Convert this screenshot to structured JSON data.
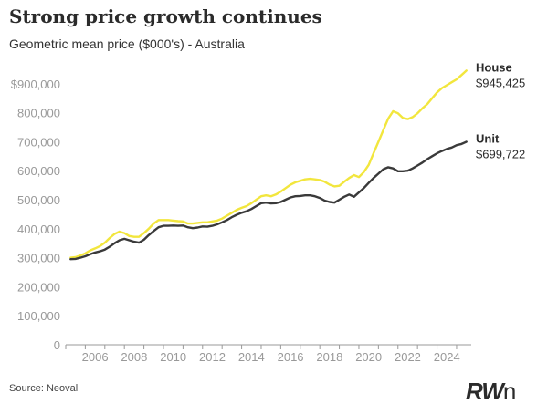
{
  "title": "Strong price growth continues",
  "subtitle": "Geometric mean price ($000's) - Australia",
  "source": "Source: Neoval",
  "logo": {
    "bold": "RW",
    "rest": "n"
  },
  "colors": {
    "house": "#f2e63d",
    "unit": "#3a3a3a",
    "axis": "#999999",
    "tick_text": "#999999"
  },
  "chart_data": {
    "type": "line",
    "title": "Strong price growth continues",
    "subtitle": "Geometric mean price ($000's) - Australia",
    "xlim": [
      2005.0,
      2025.75
    ],
    "ylim": [
      0,
      1000000
    ],
    "grid": false,
    "xticks": [
      2006,
      2008,
      2010,
      2012,
      2014,
      2016,
      2018,
      2020,
      2022,
      2024
    ],
    "xtick_labels": [
      "2006",
      "2008",
      "2010",
      "2012",
      "2014",
      "2016",
      "2018",
      "2020",
      "2022",
      "2024"
    ],
    "yticks": [
      0,
      100000,
      200000,
      300000,
      400000,
      500000,
      600000,
      700000,
      800000,
      900000
    ],
    "ytick_labels": [
      "0",
      "100,000",
      "200,000",
      "300,000",
      "400,000",
      "500,000",
      "600,000",
      "700,000",
      "800,000",
      "$900,000"
    ],
    "series": [
      {
        "name": "House",
        "end_label": "$945,425",
        "color": "#f2e63d",
        "x": [
          2005.25,
          2005.5,
          2005.75,
          2006.0,
          2006.25,
          2006.5,
          2006.75,
          2007.0,
          2007.25,
          2007.5,
          2007.75,
          2008.0,
          2008.25,
          2008.5,
          2008.75,
          2009.0,
          2009.25,
          2009.5,
          2009.75,
          2010.0,
          2010.25,
          2010.5,
          2010.75,
          2011.0,
          2011.25,
          2011.5,
          2011.75,
          2012.0,
          2012.25,
          2012.5,
          2012.75,
          2013.0,
          2013.25,
          2013.5,
          2013.75,
          2014.0,
          2014.25,
          2014.5,
          2014.75,
          2015.0,
          2015.25,
          2015.5,
          2015.75,
          2016.0,
          2016.25,
          2016.5,
          2016.75,
          2017.0,
          2017.25,
          2017.5,
          2017.75,
          2018.0,
          2018.25,
          2018.5,
          2018.75,
          2019.0,
          2019.25,
          2019.5,
          2019.75,
          2020.0,
          2020.25,
          2020.5,
          2020.75,
          2021.0,
          2021.25,
          2021.5,
          2021.75,
          2022.0,
          2022.25,
          2022.5,
          2022.75,
          2023.0,
          2023.25,
          2023.5,
          2023.75,
          2024.0,
          2024.25,
          2024.5,
          2024.75,
          2025.0,
          2025.25,
          2025.5
        ],
        "values": [
          300000,
          302000,
          308000,
          315000,
          325000,
          332000,
          340000,
          352000,
          368000,
          382000,
          390000,
          385000,
          375000,
          372000,
          372000,
          385000,
          400000,
          418000,
          430000,
          430000,
          430000,
          428000,
          426000,
          425000,
          418000,
          418000,
          420000,
          422000,
          422000,
          425000,
          428000,
          435000,
          445000,
          455000,
          465000,
          472000,
          478000,
          488000,
          500000,
          512000,
          515000,
          512000,
          518000,
          528000,
          540000,
          552000,
          560000,
          565000,
          570000,
          572000,
          570000,
          568000,
          562000,
          552000,
          546000,
          548000,
          562000,
          575000,
          585000,
          578000,
          595000,
          620000,
          660000,
          700000,
          740000,
          780000,
          805000,
          798000,
          782000,
          778000,
          785000,
          798000,
          815000,
          830000,
          850000,
          870000,
          885000,
          895000,
          905000,
          915000,
          930000,
          945425
        ]
      },
      {
        "name": "Unit",
        "end_label": "$699,722",
        "color": "#3a3a3a",
        "x": [
          2005.25,
          2005.5,
          2005.75,
          2006.0,
          2006.25,
          2006.5,
          2006.75,
          2007.0,
          2007.25,
          2007.5,
          2007.75,
          2008.0,
          2008.25,
          2008.5,
          2008.75,
          2009.0,
          2009.25,
          2009.5,
          2009.75,
          2010.0,
          2010.25,
          2010.5,
          2010.75,
          2011.0,
          2011.25,
          2011.5,
          2011.75,
          2012.0,
          2012.25,
          2012.5,
          2012.75,
          2013.0,
          2013.25,
          2013.5,
          2013.75,
          2014.0,
          2014.25,
          2014.5,
          2014.75,
          2015.0,
          2015.25,
          2015.5,
          2015.75,
          2016.0,
          2016.25,
          2016.5,
          2016.75,
          2017.0,
          2017.25,
          2017.5,
          2017.75,
          2018.0,
          2018.25,
          2018.5,
          2018.75,
          2019.0,
          2019.25,
          2019.5,
          2019.75,
          2020.0,
          2020.25,
          2020.5,
          2020.75,
          2021.0,
          2021.25,
          2021.5,
          2021.75,
          2022.0,
          2022.25,
          2022.5,
          2022.75,
          2023.0,
          2023.25,
          2023.5,
          2023.75,
          2024.0,
          2024.25,
          2024.5,
          2024.75,
          2025.0,
          2025.25,
          2025.5
        ],
        "values": [
          295000,
          296000,
          300000,
          305000,
          312000,
          318000,
          322000,
          328000,
          338000,
          350000,
          360000,
          365000,
          360000,
          355000,
          352000,
          362000,
          378000,
          392000,
          405000,
          410000,
          410000,
          411000,
          410000,
          411000,
          405000,
          402000,
          404000,
          408000,
          407000,
          410000,
          415000,
          422000,
          430000,
          440000,
          448000,
          455000,
          460000,
          468000,
          478000,
          488000,
          490000,
          487000,
          488000,
          492000,
          500000,
          508000,
          512000,
          513000,
          515000,
          515000,
          512000,
          506000,
          497000,
          492000,
          490000,
          500000,
          510000,
          518000,
          510000,
          525000,
          540000,
          558000,
          575000,
          590000,
          605000,
          612000,
          608000,
          598000,
          598000,
          600000,
          608000,
          618000,
          628000,
          640000,
          650000,
          660000,
          668000,
          675000,
          680000,
          688000,
          692000,
          699722
        ]
      }
    ]
  }
}
